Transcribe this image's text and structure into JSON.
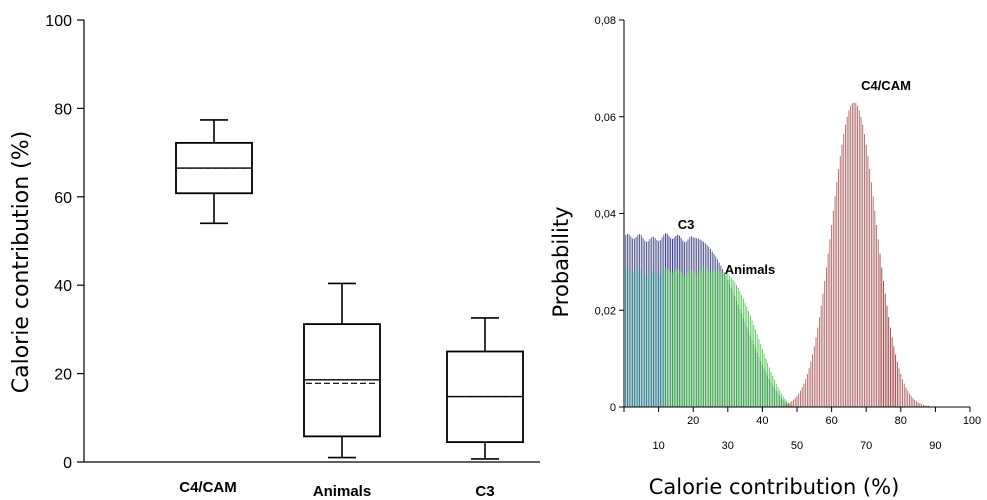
{
  "chart_data": [
    {
      "type": "box",
      "title": "",
      "xlabel": "",
      "ylabel": "Calorie contribution (%)",
      "ylim": [
        0,
        100
      ],
      "yticks": [
        "0",
        "20",
        "40",
        "60",
        "80",
        "100"
      ],
      "categories": [
        "C4/CAM",
        "Animals",
        "C3"
      ],
      "boxes": [
        {
          "category": "C4/CAM",
          "whisker_low": 54,
          "q1": 60.8,
          "median": 66.5,
          "mean": 66.5,
          "q3": 72.2,
          "whisker_high": 77.4
        },
        {
          "category": "Animals",
          "whisker_low": 1,
          "q1": 5.8,
          "median": 18.6,
          "mean": 17.8,
          "q3": 31.2,
          "whisker_high": 40.4
        },
        {
          "category": "C3",
          "whisker_low": 0.7,
          "q1": 4.5,
          "median": 14.8,
          "mean": 14.8,
          "q3": 25.0,
          "whisker_high": 32.6
        }
      ]
    },
    {
      "type": "histogram",
      "title": "",
      "xlabel": "Calorie contribution (%)",
      "ylabel": "Probability",
      "xlim": [
        0,
        100
      ],
      "ylim": [
        0,
        0.08
      ],
      "xticks_major": [
        "10",
        "30",
        "50",
        "70",
        "90"
      ],
      "xticks_minor": [
        "20",
        "40",
        "60",
        "80",
        "100"
      ],
      "yticks": [
        "0",
        "0,02",
        "0,04",
        "0,06",
        "0,08"
      ],
      "series": [
        {
          "name": "C3",
          "color": "#353a7a",
          "highlight": "#1a1c7a",
          "distribution": "uniform-then-decline",
          "plateau": 0.035,
          "plateau_end": 20,
          "zero_at": 50,
          "highlight_range": [
            12,
            17
          ]
        },
        {
          "name": "Animals",
          "color": "#1f8a8a",
          "highlight": "#35c035",
          "distribution": "uniform-then-decline",
          "plateau": 0.028,
          "plateau_end": 28,
          "zero_at": 50,
          "highlight_range": [
            12,
            48
          ]
        },
        {
          "name": "C4/CAM",
          "color": "#a14a4a",
          "highlight": "#8a1a1a",
          "distribution": "normal",
          "mean": 66.5,
          "sd": 6.4,
          "peak": 0.063,
          "highlight_range": [
            74,
            79
          ]
        }
      ],
      "annotations": [
        "C3",
        "Animals",
        "C4/CAM"
      ]
    }
  ]
}
